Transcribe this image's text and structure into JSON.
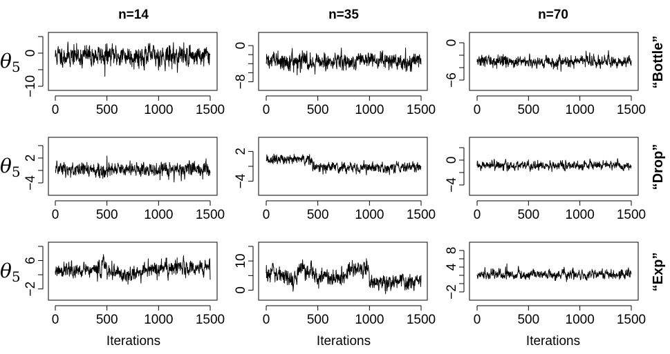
{
  "figure": {
    "column_titles": [
      "n=14",
      "n=35",
      "n=70"
    ],
    "row_titles": [
      "“Bottle”",
      "“Drop”",
      "“Exp”"
    ],
    "y_label_symbol": "θ",
    "y_label_subscript": "5",
    "x_label": "Iterations"
  },
  "chart_data": [
    {
      "type": "line",
      "panel": "Bottle n=14",
      "row": 0,
      "col": 0,
      "xlim": [
        0,
        1500
      ],
      "ylim": [
        -10,
        5
      ],
      "xticks": [
        0,
        500,
        1000,
        1500
      ],
      "yticks": [
        -10,
        0
      ],
      "yminor": [
        -5,
        5
      ],
      "n_iter": 1500,
      "trace": {
        "mean": -0.8,
        "sd": 1.6,
        "segments": [
          [
            0,
            1500,
            -0.8
          ]
        ],
        "spikes": [
          [
            480,
            -7.0
          ],
          [
            260,
            -4.5
          ],
          [
            1100,
            -4.0
          ]
        ]
      },
      "seed": 11
    },
    {
      "type": "line",
      "panel": "Bottle n=35",
      "row": 0,
      "col": 1,
      "xlim": [
        0,
        1500
      ],
      "ylim": [
        -9,
        2
      ],
      "xticks": [
        0,
        500,
        1000,
        1500
      ],
      "yticks": [
        -8,
        0
      ],
      "yminor": [
        -6,
        -4,
        -2
      ],
      "n_iter": 1500,
      "trace": {
        "mean": -3.5,
        "sd": 0.9,
        "segments": [
          [
            0,
            1500,
            -3.5
          ]
        ],
        "spikes": [
          [
            300,
            -6.5
          ],
          [
            1350,
            -0.5
          ]
        ]
      },
      "seed": 22
    },
    {
      "type": "line",
      "panel": "Bottle n=70",
      "row": 0,
      "col": 2,
      "xlim": [
        0,
        1500
      ],
      "ylim": [
        -7,
        1
      ],
      "xticks": [
        0,
        500,
        1000,
        1500
      ],
      "yticks": [
        -6,
        0
      ],
      "yminor": [
        -4,
        -2
      ],
      "n_iter": 1500,
      "trace": {
        "mean": -3.0,
        "sd": 0.45,
        "segments": [
          [
            0,
            1500,
            -3.0
          ]
        ],
        "spikes": []
      },
      "seed": 33
    },
    {
      "type": "line",
      "panel": "Drop n=14",
      "row": 1,
      "col": 0,
      "xlim": [
        0,
        1500
      ],
      "ylim": [
        -6,
        6
      ],
      "xticks": [
        0,
        500,
        1000,
        1500
      ],
      "yticks": [
        -4,
        2
      ],
      "yminor": [
        -1,
        5
      ],
      "n_iter": 1500,
      "trace": {
        "mean": -0.8,
        "sd": 0.9,
        "segments": [
          [
            0,
            1500,
            -0.8
          ]
        ],
        "spikes": [
          [
            1150,
            -3.8
          ],
          [
            500,
            2.5
          ]
        ]
      },
      "seed": 44
    },
    {
      "type": "line",
      "panel": "Drop n=35",
      "row": 1,
      "col": 1,
      "xlim": [
        0,
        1500
      ],
      "ylim": [
        -6,
        4
      ],
      "xticks": [
        0,
        500,
        1000,
        1500
      ],
      "yticks": [
        -4,
        2
      ],
      "yminor": [
        -1
      ],
      "n_iter": 1500,
      "trace": {
        "mean": -1.2,
        "sd": 0.5,
        "segments": [
          [
            0,
            450,
            0.3
          ],
          [
            450,
            1500,
            -1.2
          ]
        ],
        "spikes": []
      },
      "seed": 55
    },
    {
      "type": "line",
      "panel": "Drop n=70",
      "row": 1,
      "col": 2,
      "xlim": [
        0,
        1500
      ],
      "ylim": [
        -5,
        3
      ],
      "xticks": [
        0,
        500,
        1000,
        1500
      ],
      "yticks": [
        -4,
        0
      ],
      "yminor": [
        -2,
        2
      ],
      "n_iter": 1500,
      "trace": {
        "mean": -0.9,
        "sd": 0.35,
        "segments": [
          [
            0,
            1500,
            -0.9
          ]
        ],
        "spikes": []
      },
      "seed": 66
    },
    {
      "type": "line",
      "panel": "Exp n=14",
      "row": 2,
      "col": 0,
      "xlim": [
        0,
        1500
      ],
      "ylim": [
        -4,
        10
      ],
      "xticks": [
        0,
        500,
        1000,
        1500
      ],
      "yticks": [
        -2,
        6
      ],
      "yminor": [
        2,
        10
      ],
      "n_iter": 1500,
      "trace": {
        "mean": 3.0,
        "sd": 1.1,
        "segments": [
          [
            0,
            450,
            3.2
          ],
          [
            450,
            500,
            5.0
          ],
          [
            500,
            850,
            2.3
          ],
          [
            850,
            1500,
            3.8
          ]
        ],
        "spikes": [
          [
            470,
            7.0
          ],
          [
            900,
            6.5
          ],
          [
            1180,
            6.8
          ],
          [
            760,
            0.8
          ]
        ]
      },
      "seed": 77
    },
    {
      "type": "line",
      "panel": "Exp n=35",
      "row": 2,
      "col": 1,
      "xlim": [
        0,
        1500
      ],
      "ylim": [
        -2,
        15
      ],
      "xticks": [
        0,
        500,
        1000,
        1500
      ],
      "yticks": [
        0,
        10
      ],
      "yminor": [
        5,
        15
      ],
      "n_iter": 1500,
      "trace": {
        "mean": 3.5,
        "sd": 1.4,
        "segments": [
          [
            0,
            150,
            6.0
          ],
          [
            150,
            300,
            4.0
          ],
          [
            300,
            450,
            7.0
          ],
          [
            450,
            800,
            4.5
          ],
          [
            800,
            1000,
            7.0
          ],
          [
            1000,
            1500,
            3.0
          ]
        ],
        "spikes": [
          [
            970,
            10.8
          ],
          [
            360,
            8.5
          ]
        ]
      },
      "seed": 88
    },
    {
      "type": "line",
      "panel": "Exp n=70",
      "row": 2,
      "col": 2,
      "xlim": [
        0,
        1500
      ],
      "ylim": [
        -3,
        9
      ],
      "xticks": [
        0,
        500,
        1000,
        1500
      ],
      "yticks": [
        -2,
        4,
        8
      ],
      "yminor": [
        0,
        2,
        6
      ],
      "n_iter": 1500,
      "trace": {
        "mean": 2.2,
        "sd": 0.55,
        "segments": [
          [
            0,
            1500,
            2.2
          ]
        ],
        "spikes": [
          [
            290,
            4.8
          ]
        ]
      },
      "seed": 99
    }
  ]
}
